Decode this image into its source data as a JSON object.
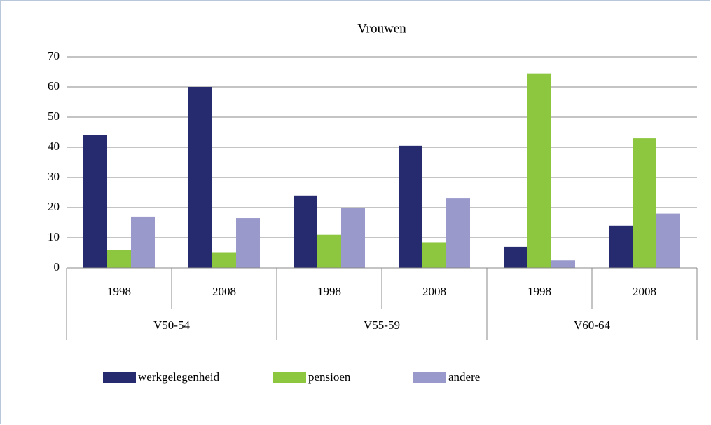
{
  "chart_data": {
    "type": "bar",
    "title": "Vrouwen",
    "categories": [
      "1998",
      "2008",
      "1998",
      "2008",
      "1998",
      "2008"
    ],
    "groups": [
      "V50-54",
      "V55-59",
      "V60-64"
    ],
    "series": [
      {
        "name": "werkgelegenheid",
        "color": "#262a6e",
        "values": [
          44,
          60,
          24,
          40.5,
          7,
          14
        ]
      },
      {
        "name": "pensioen",
        "color": "#8dc63f",
        "values": [
          6,
          5,
          11,
          8.5,
          64.5,
          43
        ]
      },
      {
        "name": "andere",
        "color": "#9999cc",
        "values": [
          17,
          16.5,
          20,
          23,
          2.5,
          18
        ]
      }
    ],
    "ylim": [
      0,
      70
    ],
    "yticks": [
      0,
      10,
      20,
      30,
      40,
      50,
      60,
      70
    ],
    "grid": true,
    "legend": "bottom"
  }
}
